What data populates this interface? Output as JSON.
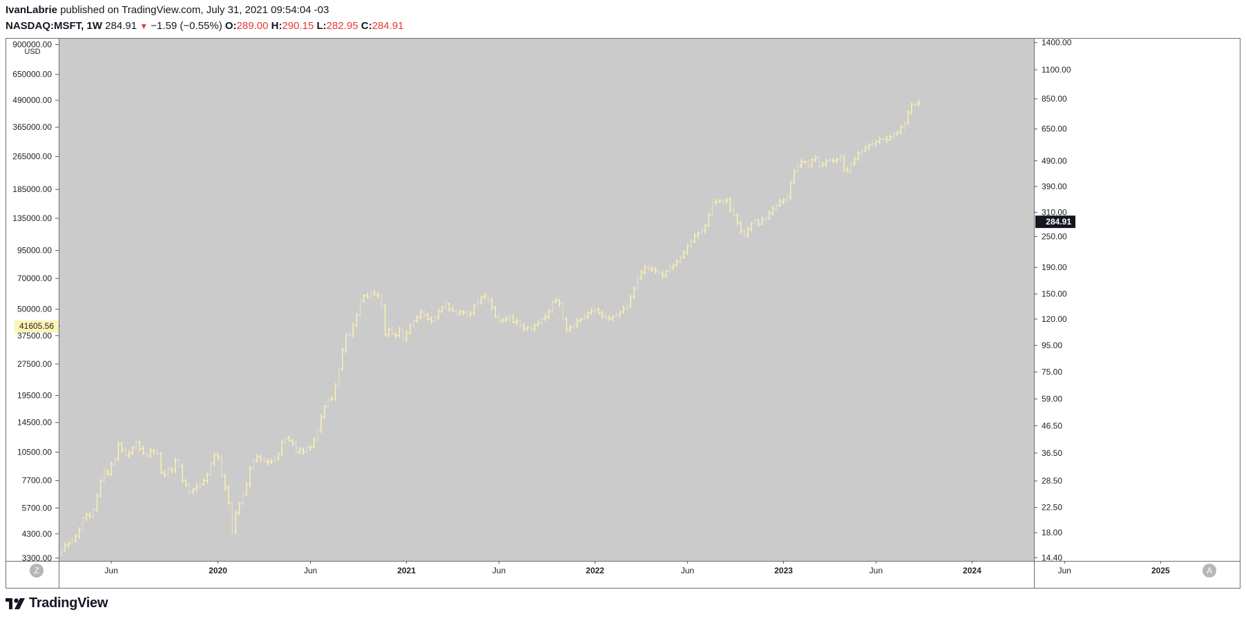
{
  "header": {
    "author": "IvanLabrie",
    "published_text": "published on TradingView.com, July 31, 2021 09:54:04 -03",
    "symbol": "NASDAQ:MSFT, 1W",
    "last": "284.91",
    "change": "−1.59 (−0.55%)",
    "o_label": "O:",
    "o_value": "289.00",
    "h_label": "H:",
    "h_value": "290.15",
    "l_label": "L:",
    "l_value": "282.95",
    "c_label": "C:",
    "c_value": "284.91"
  },
  "buttons": {
    "left": "Z",
    "right": "A"
  },
  "footer": {
    "brand": "TradingView"
  },
  "colors": {
    "plot_bg": "#cbcbcb",
    "bar_main": "#fdf3b2",
    "bar_dim": "#e2ddc8",
    "price_tag_bg": "#fbf5b6",
    "last_price_bg": "#131722",
    "text": "#131722",
    "down": "#e53935"
  },
  "chart_data": {
    "type": "bar",
    "timeframe": "1W",
    "left_axis": {
      "unit_label": "USD",
      "scale": "log",
      "range": [
        3200,
        960000
      ],
      "ticks": [
        "3300.00",
        "4300.00",
        "5700.00",
        "7700.00",
        "10500.00",
        "14500.00",
        "19500.00",
        "27500.00",
        "37500.00",
        "50000.00",
        "70000.00",
        "95000.00",
        "135000.00",
        "185000.00",
        "265000.00",
        "365000.00",
        "490000.00",
        "650000.00",
        "900000.00"
      ],
      "crosshair_label": "41605.56",
      "crosshair_value": 41605.56
    },
    "right_axis": {
      "scale": "log",
      "range": [
        14.0,
        1450
      ],
      "ticks": [
        "14.40",
        "18.00",
        "22.50",
        "28.50",
        "36.50",
        "46.50",
        "59.00",
        "75.00",
        "95.00",
        "120.00",
        "150.00",
        "190.00",
        "250.00",
        "310.00",
        "390.00",
        "490.00",
        "650.00",
        "850.00",
        "1100.00",
        "1400.00"
      ],
      "last_price_label": "284.91",
      "last_price_value": 284.91
    },
    "time_axis": {
      "labels": [
        "Jun",
        "2020",
        "Jun",
        "2021",
        "Jun",
        "2022",
        "Jun",
        "2023",
        "Jun",
        "2024",
        "Jun",
        "2025",
        "Jun"
      ],
      "bold": [
        false,
        true,
        false,
        true,
        false,
        true,
        false,
        true,
        false,
        true,
        false,
        true,
        false
      ],
      "positions_weeks": [
        14,
        44,
        70,
        97,
        123,
        150,
        176,
        203,
        229,
        256,
        282,
        309,
        335
      ]
    },
    "series": [
      {
        "axis": "left",
        "start_week": 0,
        "closes": [
          3600,
          3800,
          3900,
          4000,
          4200,
          4500,
          5100,
          5300,
          5200,
          5600,
          6500,
          7700,
          8600,
          8300,
          9200,
          9700,
          11500,
          10800,
          10100,
          10400,
          11000,
          11700,
          10900,
          10300,
          10100,
          10700,
          10500,
          10300,
          8400,
          8200,
          8700,
          8600,
          9600,
          9000,
          7700,
          7300,
          6800,
          7000,
          7200,
          7400,
          7700,
          8200,
          9300,
          10200,
          9900,
          8100,
          7100,
          6000,
          4400,
          5400,
          6000,
          6600,
          7400,
          8800,
          9600,
          10000,
          9700,
          9500,
          9400,
          9600,
          9800,
          10300,
          11700,
          12200,
          11900,
          11600,
          10500,
          10800,
          10500,
          11000,
          11100,
          12000,
          13300,
          15400,
          17300,
          18600,
          18900,
          21700,
          26000,
          32000,
          37500,
          38000,
          42000,
          47000,
          55000,
          58000,
          57000,
          60000,
          59000,
          58000,
          52000,
          38000,
          40000,
          38000,
          37500,
          40000,
          36000,
          38500,
          42000,
          44000,
          46000,
          48500,
          47000,
          45000,
          44000,
          46000,
          49000,
          51000,
          53000,
          50000,
          49000,
          47500,
          48500,
          48000,
          47000,
          48000,
          52000,
          54000,
          57000,
          58000,
          55000,
          51000,
          46000,
          44000,
          44500,
          45000,
          46000,
          43500,
          44000,
          42000,
          40500,
          41000,
          40500,
          42000,
          43000,
          45000,
          46000,
          49000,
          54000,
          55000,
          53000,
          45000,
          40000,
          41000,
          42000,
          44000,
          45000,
          46000,
          48000,
          49000,
          49500,
          48000,
          46500,
          45500,
          45000,
          46000,
          47000,
          48500,
          50500,
          52000,
          57000,
          63000,
          70000,
          75000,
          79000,
          78000,
          77000,
          76000,
          74000,
          72000,
          76000,
          79000,
          81000,
          84000,
          88000,
          93000,
          100000,
          105000,
          112000,
          115000,
          118000,
          125000,
          140000,
          160000,
          162000,
          163000,
          162000,
          165000,
          148000,
          140000,
          128000,
          118000,
          112000,
          120000,
          128000,
          132000,
          127000,
          133000,
          135000,
          143000,
          150000,
          155000,
          162000,
          165000,
          170000,
          200000,
          225000,
          240000,
          250000,
          250000,
          240000,
          255000,
          262000,
          240000,
          245000,
          252000,
          255000,
          253000,
          258000,
          265000,
          230000,
          225000,
          245000,
          258000,
          275000,
          280000,
          292000,
          300000,
          305000,
          312000,
          320000,
          322000,
          318000,
          330000,
          338000,
          345000,
          365000,
          380000,
          430000,
          465000,
          470000,
          478000
        ]
      }
    ],
    "overlay_series": {
      "axis": "right",
      "note": "dim duplicate bars scaled to right axis",
      "last_value": 284.91
    }
  }
}
